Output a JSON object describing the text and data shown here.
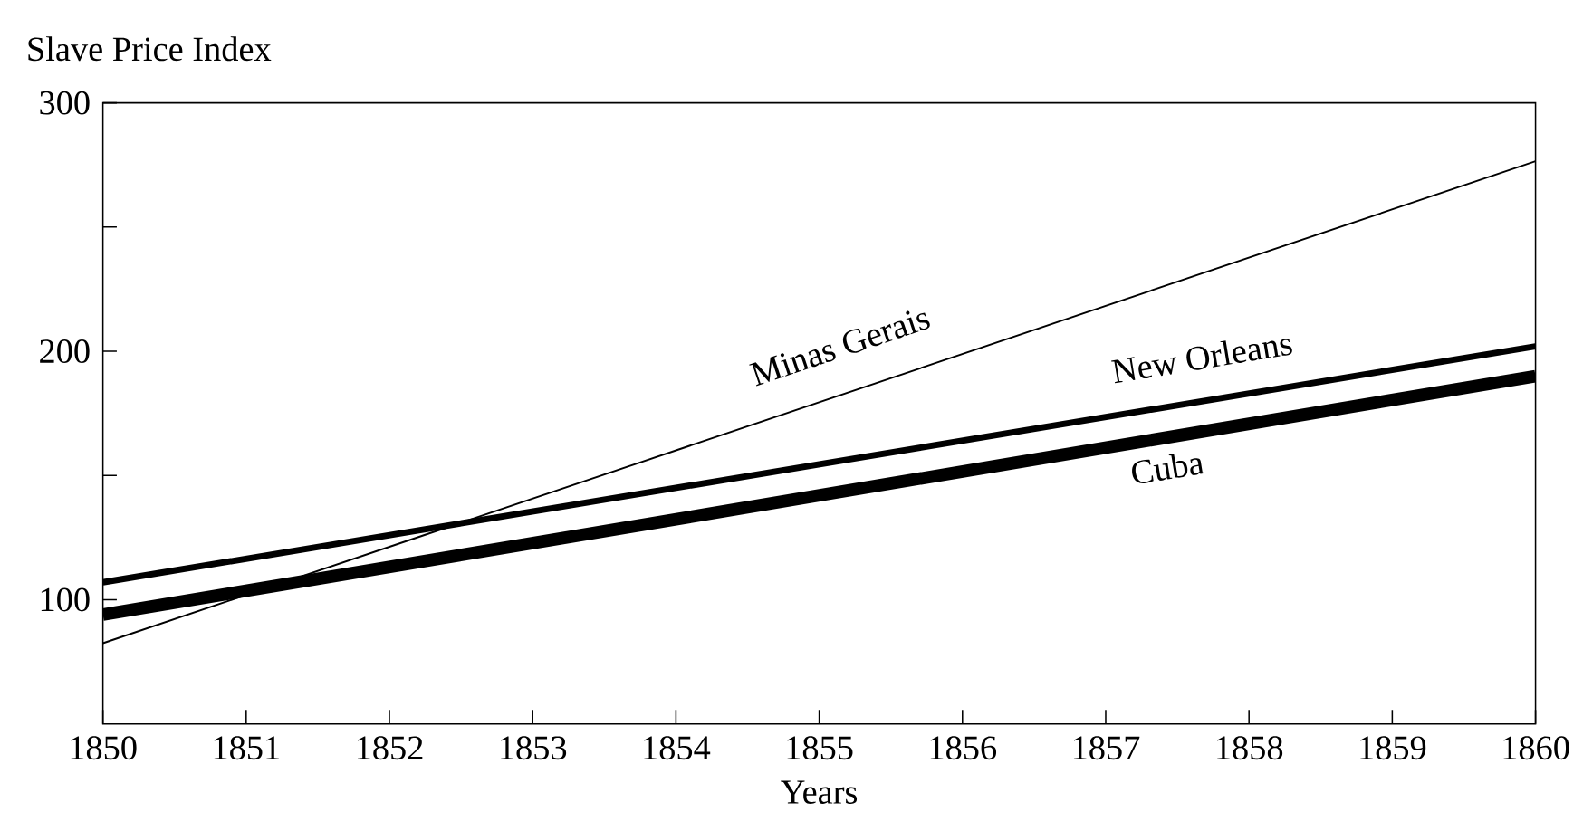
{
  "chart_data": {
    "type": "line",
    "xlabel": "Years",
    "ylabel": "Slave Price Index",
    "x": [
      1850,
      1860
    ],
    "series": [
      {
        "name": "Minas Gerais",
        "color": "#000000",
        "values": [
          82.5,
          276.5
        ]
      },
      {
        "name": "New Orleans",
        "color": "#000000",
        "values": [
          107,
          202
        ]
      },
      {
        "name": "Cuba",
        "color": "#000000",
        "values": [
          94,
          190
        ]
      }
    ],
    "xlim": [
      1850,
      1860
    ],
    "xticks": [
      1850,
      1851,
      1852,
      1853,
      1854,
      1855,
      1856,
      1857,
      1858,
      1859,
      1860
    ],
    "ylim": [
      50,
      300
    ],
    "yticks": [
      100,
      {
        "value": 150,
        "label": null
      },
      200,
      {
        "value": 250,
        "label": null
      },
      300
    ],
    "legend": false,
    "grid": false,
    "marker": "none",
    "line_style": "solid"
  }
}
